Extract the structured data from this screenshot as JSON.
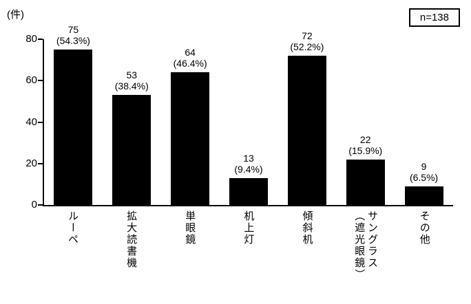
{
  "chart_data": {
    "type": "bar",
    "title": "",
    "ylabel": "(件)",
    "xlabel": "",
    "annotation": "n=138",
    "categories": [
      "ルーペ",
      "拡大読書機",
      "単眼鏡",
      "机上灯",
      "傾斜机",
      "サングラス\n（遮光眼鏡）",
      "その他"
    ],
    "values": [
      75,
      53,
      64,
      13,
      72,
      22,
      9
    ],
    "percent_labels": [
      "(54.3%)",
      "(38.4%)",
      "(46.4%)",
      "(9.4%)",
      "(52.2%)",
      "(15.9%)",
      "(6.5%)"
    ],
    "ylim": [
      0,
      80
    ],
    "yticks": [
      0,
      20,
      40,
      60,
      80
    ],
    "bar_color": "#000000",
    "grid": false,
    "legend_position": "none"
  }
}
